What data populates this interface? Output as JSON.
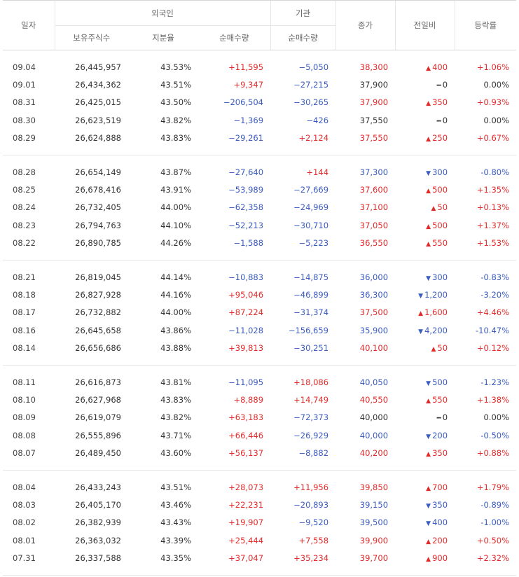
{
  "header": {
    "date": "일자",
    "foreign": "외국인",
    "institution": "기관",
    "close": "종가",
    "change": "전일비",
    "rate": "등락률",
    "holdings": "보유주식수",
    "ratio": "지분율",
    "foreign_net": "순매수량",
    "inst_net": "순매수량"
  },
  "groups": [
    [
      {
        "date": "09.04",
        "holdings": "26,445,957",
        "ratio": "43.53%",
        "fnet": "+11,595",
        "fdir": "red",
        "inet": "−5,050",
        "idir": "blue",
        "close": "38,300",
        "cdir": "red",
        "change": "400",
        "chdir": "up",
        "rate": "+1.06%",
        "rdir": "red"
      },
      {
        "date": "09.01",
        "holdings": "26,434,362",
        "ratio": "43.51%",
        "fnet": "+9,347",
        "fdir": "red",
        "inet": "−27,215",
        "idir": "blue",
        "close": "37,900",
        "cdir": "blk",
        "change": "0",
        "chdir": "flat",
        "rate": "0.00%",
        "rdir": "blk"
      },
      {
        "date": "08.31",
        "holdings": "26,425,015",
        "ratio": "43.50%",
        "fnet": "−206,504",
        "fdir": "blue",
        "inet": "−30,265",
        "idir": "blue",
        "close": "37,900",
        "cdir": "red",
        "change": "350",
        "chdir": "up",
        "rate": "+0.93%",
        "rdir": "red"
      },
      {
        "date": "08.30",
        "holdings": "26,623,519",
        "ratio": "43.82%",
        "fnet": "−1,369",
        "fdir": "blue",
        "inet": "−426",
        "idir": "blue",
        "close": "37,550",
        "cdir": "blk",
        "change": "0",
        "chdir": "flat",
        "rate": "0.00%",
        "rdir": "blk"
      },
      {
        "date": "08.29",
        "holdings": "26,624,888",
        "ratio": "43.83%",
        "fnet": "−29,261",
        "fdir": "blue",
        "inet": "+2,124",
        "idir": "red",
        "close": "37,550",
        "cdir": "red",
        "change": "250",
        "chdir": "up",
        "rate": "+0.67%",
        "rdir": "red"
      }
    ],
    [
      {
        "date": "08.28",
        "holdings": "26,654,149",
        "ratio": "43.87%",
        "fnet": "−27,640",
        "fdir": "blue",
        "inet": "+144",
        "idir": "red",
        "close": "37,300",
        "cdir": "blue",
        "change": "300",
        "chdir": "down",
        "rate": "-0.80%",
        "rdir": "blue"
      },
      {
        "date": "08.25",
        "holdings": "26,678,416",
        "ratio": "43.91%",
        "fnet": "−53,989",
        "fdir": "blue",
        "inet": "−27,669",
        "idir": "blue",
        "close": "37,600",
        "cdir": "red",
        "change": "500",
        "chdir": "up",
        "rate": "+1.35%",
        "rdir": "red"
      },
      {
        "date": "08.24",
        "holdings": "26,732,405",
        "ratio": "44.00%",
        "fnet": "−62,358",
        "fdir": "blue",
        "inet": "−24,969",
        "idir": "blue",
        "close": "37,100",
        "cdir": "red",
        "change": "50",
        "chdir": "up",
        "rate": "+0.13%",
        "rdir": "red"
      },
      {
        "date": "08.23",
        "holdings": "26,794,763",
        "ratio": "44.10%",
        "fnet": "−52,213",
        "fdir": "blue",
        "inet": "−30,710",
        "idir": "blue",
        "close": "37,050",
        "cdir": "red",
        "change": "500",
        "chdir": "up",
        "rate": "+1.37%",
        "rdir": "red"
      },
      {
        "date": "08.22",
        "holdings": "26,890,785",
        "ratio": "44.26%",
        "fnet": "−1,588",
        "fdir": "blue",
        "inet": "−5,223",
        "idir": "blue",
        "close": "36,550",
        "cdir": "red",
        "change": "550",
        "chdir": "up",
        "rate": "+1.53%",
        "rdir": "red"
      }
    ],
    [
      {
        "date": "08.21",
        "holdings": "26,819,045",
        "ratio": "44.14%",
        "fnet": "−10,883",
        "fdir": "blue",
        "inet": "−14,875",
        "idir": "blue",
        "close": "36,000",
        "cdir": "blue",
        "change": "300",
        "chdir": "down",
        "rate": "-0.83%",
        "rdir": "blue"
      },
      {
        "date": "08.18",
        "holdings": "26,827,928",
        "ratio": "44.16%",
        "fnet": "+95,046",
        "fdir": "red",
        "inet": "−46,899",
        "idir": "blue",
        "close": "36,300",
        "cdir": "blue",
        "change": "1,200",
        "chdir": "down",
        "rate": "-3.20%",
        "rdir": "blue"
      },
      {
        "date": "08.17",
        "holdings": "26,732,882",
        "ratio": "44.00%",
        "fnet": "+87,224",
        "fdir": "red",
        "inet": "−31,374",
        "idir": "blue",
        "close": "37,500",
        "cdir": "red",
        "change": "1,600",
        "chdir": "up",
        "rate": "+4.46%",
        "rdir": "red"
      },
      {
        "date": "08.16",
        "holdings": "26,645,658",
        "ratio": "43.86%",
        "fnet": "−11,028",
        "fdir": "blue",
        "inet": "−156,659",
        "idir": "blue",
        "close": "35,900",
        "cdir": "blue",
        "change": "4,200",
        "chdir": "down",
        "rate": "-10.47%",
        "rdir": "blue"
      },
      {
        "date": "08.14",
        "holdings": "26,656,686",
        "ratio": "43.88%",
        "fnet": "+39,813",
        "fdir": "red",
        "inet": "−30,251",
        "idir": "blue",
        "close": "40,100",
        "cdir": "red",
        "change": "50",
        "chdir": "up",
        "rate": "+0.12%",
        "rdir": "red"
      }
    ],
    [
      {
        "date": "08.11",
        "holdings": "26,616,873",
        "ratio": "43.81%",
        "fnet": "−11,095",
        "fdir": "blue",
        "inet": "+18,086",
        "idir": "red",
        "close": "40,050",
        "cdir": "blue",
        "change": "500",
        "chdir": "down",
        "rate": "-1.23%",
        "rdir": "blue"
      },
      {
        "date": "08.10",
        "holdings": "26,627,968",
        "ratio": "43.83%",
        "fnet": "+8,889",
        "fdir": "red",
        "inet": "+14,749",
        "idir": "red",
        "close": "40,550",
        "cdir": "red",
        "change": "550",
        "chdir": "up",
        "rate": "+1.38%",
        "rdir": "red"
      },
      {
        "date": "08.09",
        "holdings": "26,619,079",
        "ratio": "43.82%",
        "fnet": "+63,183",
        "fdir": "red",
        "inet": "−72,373",
        "idir": "blue",
        "close": "40,000",
        "cdir": "blk",
        "change": "0",
        "chdir": "flat",
        "rate": "0.00%",
        "rdir": "blk"
      },
      {
        "date": "08.08",
        "holdings": "26,555,896",
        "ratio": "43.71%",
        "fnet": "+66,446",
        "fdir": "red",
        "inet": "−26,929",
        "idir": "blue",
        "close": "40,000",
        "cdir": "blue",
        "change": "200",
        "chdir": "down",
        "rate": "-0.50%",
        "rdir": "blue"
      },
      {
        "date": "08.07",
        "holdings": "26,489,450",
        "ratio": "43.60%",
        "fnet": "+56,137",
        "fdir": "red",
        "inet": "−8,882",
        "idir": "blue",
        "close": "40,200",
        "cdir": "red",
        "change": "350",
        "chdir": "up",
        "rate": "+0.88%",
        "rdir": "red"
      }
    ],
    [
      {
        "date": "08.04",
        "holdings": "26,433,243",
        "ratio": "43.51%",
        "fnet": "+28,073",
        "fdir": "red",
        "inet": "+11,956",
        "idir": "red",
        "close": "39,850",
        "cdir": "red",
        "change": "700",
        "chdir": "up",
        "rate": "+1.79%",
        "rdir": "red"
      },
      {
        "date": "08.03",
        "holdings": "26,405,170",
        "ratio": "43.46%",
        "fnet": "+22,231",
        "fdir": "red",
        "inet": "−20,893",
        "idir": "blue",
        "close": "39,150",
        "cdir": "blue",
        "change": "350",
        "chdir": "down",
        "rate": "-0.89%",
        "rdir": "blue"
      },
      {
        "date": "08.02",
        "holdings": "26,382,939",
        "ratio": "43.43%",
        "fnet": "+19,907",
        "fdir": "red",
        "inet": "−9,520",
        "idir": "blue",
        "close": "39,500",
        "cdir": "blue",
        "change": "400",
        "chdir": "down",
        "rate": "-1.00%",
        "rdir": "blue"
      },
      {
        "date": "08.01",
        "holdings": "26,363,032",
        "ratio": "43.39%",
        "fnet": "+25,444",
        "fdir": "red",
        "inet": "+7,558",
        "idir": "red",
        "close": "39,900",
        "cdir": "red",
        "change": "200",
        "chdir": "up",
        "rate": "+0.50%",
        "rdir": "red"
      },
      {
        "date": "07.31",
        "holdings": "26,337,588",
        "ratio": "43.35%",
        "fnet": "+37,047",
        "fdir": "red",
        "inet": "+35,234",
        "idir": "red",
        "close": "39,700",
        "cdir": "red",
        "change": "900",
        "chdir": "up",
        "rate": "+2.32%",
        "rdir": "red"
      }
    ]
  ]
}
